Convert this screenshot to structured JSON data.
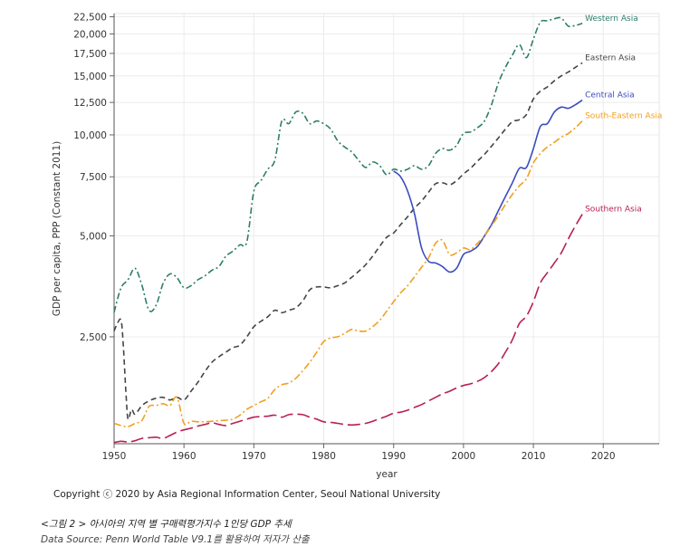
{
  "chart_data": {
    "type": "line",
    "xlabel": "year",
    "ylabel": "GDP per capita, PPP (Constant 2011)",
    "xlim": [
      1950,
      2028
    ],
    "ylim": [
      1200,
      23000
    ],
    "yscale": "log",
    "x_ticks": [
      1950,
      1960,
      1970,
      1980,
      1990,
      2000,
      2010,
      2020
    ],
    "y_ticks": [
      2500,
      5000,
      7500,
      10000,
      12500,
      15000,
      17500,
      20000,
      22500
    ],
    "y_tick_labels": [
      "2,500",
      "5,000",
      "7,500",
      "10,000",
      "12,500",
      "15,000",
      "17,500",
      "20,000",
      "22,500"
    ],
    "grid": true,
    "series": [
      {
        "name": "Western Asia",
        "color": "#2e7d6b",
        "dash": "7,3,2,3",
        "points": [
          [
            1950,
            2960
          ],
          [
            1951,
            3500
          ],
          [
            1952,
            3700
          ],
          [
            1953,
            4000
          ],
          [
            1954,
            3550
          ],
          [
            1955,
            3000
          ],
          [
            1956,
            3100
          ],
          [
            1957,
            3600
          ],
          [
            1958,
            3850
          ],
          [
            1959,
            3750
          ],
          [
            1960,
            3500
          ],
          [
            1961,
            3550
          ],
          [
            1962,
            3700
          ],
          [
            1963,
            3800
          ],
          [
            1964,
            3950
          ],
          [
            1965,
            4050
          ],
          [
            1966,
            4350
          ],
          [
            1967,
            4500
          ],
          [
            1968,
            4700
          ],
          [
            1969,
            4800
          ],
          [
            1970,
            6800
          ],
          [
            1971,
            7300
          ],
          [
            1972,
            7900
          ],
          [
            1973,
            8400
          ],
          [
            1974,
            11000
          ],
          [
            1975,
            10800
          ],
          [
            1976,
            11700
          ],
          [
            1977,
            11600
          ],
          [
            1978,
            10800
          ],
          [
            1979,
            11000
          ],
          [
            1980,
            10800
          ],
          [
            1981,
            10400
          ],
          [
            1982,
            9600
          ],
          [
            1983,
            9200
          ],
          [
            1984,
            8900
          ],
          [
            1985,
            8400
          ],
          [
            1986,
            8000
          ],
          [
            1987,
            8300
          ],
          [
            1988,
            8100
          ],
          [
            1989,
            7600
          ],
          [
            1990,
            7900
          ],
          [
            1991,
            7800
          ],
          [
            1992,
            7900
          ],
          [
            1993,
            8100
          ],
          [
            1994,
            7900
          ],
          [
            1995,
            8100
          ],
          [
            1996,
            8800
          ],
          [
            1997,
            9100
          ],
          [
            1998,
            9000
          ],
          [
            1999,
            9300
          ],
          [
            2000,
            10100
          ],
          [
            2001,
            10200
          ],
          [
            2002,
            10500
          ],
          [
            2003,
            11000
          ],
          [
            2004,
            12300
          ],
          [
            2005,
            14300
          ],
          [
            2006,
            15900
          ],
          [
            2007,
            17300
          ],
          [
            2008,
            18600
          ],
          [
            2009,
            17000
          ],
          [
            2010,
            19300
          ],
          [
            2011,
            21700
          ],
          [
            2012,
            21900
          ],
          [
            2013,
            22200
          ],
          [
            2014,
            22300
          ],
          [
            2015,
            21100
          ],
          [
            2016,
            21200
          ],
          [
            2017,
            21500
          ]
        ]
      },
      {
        "name": "Eastern Asia",
        "color": "#444444",
        "dash": "6,4",
        "points": [
          [
            1950,
            2600
          ],
          [
            1950.5,
            2750
          ],
          [
            1951,
            2800
          ],
          [
            1951.3,
            2400
          ],
          [
            1951.7,
            1700
          ],
          [
            1952,
            1420
          ],
          [
            1952.5,
            1520
          ],
          [
            1953,
            1470
          ],
          [
            1954,
            1560
          ],
          [
            1955,
            1610
          ],
          [
            1956,
            1640
          ],
          [
            1957,
            1650
          ],
          [
            1958,
            1620
          ],
          [
            1959,
            1650
          ],
          [
            1960,
            1620
          ],
          [
            1961,
            1720
          ],
          [
            1962,
            1830
          ],
          [
            1963,
            1970
          ],
          [
            1964,
            2100
          ],
          [
            1965,
            2180
          ],
          [
            1966,
            2250
          ],
          [
            1967,
            2320
          ],
          [
            1968,
            2360
          ],
          [
            1969,
            2500
          ],
          [
            1970,
            2680
          ],
          [
            1971,
            2780
          ],
          [
            1972,
            2870
          ],
          [
            1973,
            3000
          ],
          [
            1974,
            2950
          ],
          [
            1975,
            3000
          ],
          [
            1976,
            3050
          ],
          [
            1977,
            3200
          ],
          [
            1978,
            3450
          ],
          [
            1979,
            3520
          ],
          [
            1980,
            3520
          ],
          [
            1981,
            3500
          ],
          [
            1982,
            3550
          ],
          [
            1983,
            3620
          ],
          [
            1984,
            3760
          ],
          [
            1985,
            3920
          ],
          [
            1986,
            4100
          ],
          [
            1987,
            4350
          ],
          [
            1988,
            4650
          ],
          [
            1989,
            4950
          ],
          [
            1990,
            5100
          ],
          [
            1991,
            5400
          ],
          [
            1992,
            5700
          ],
          [
            1993,
            6050
          ],
          [
            1994,
            6350
          ],
          [
            1995,
            6750
          ],
          [
            1996,
            7150
          ],
          [
            1997,
            7200
          ],
          [
            1998,
            7100
          ],
          [
            1999,
            7300
          ],
          [
            2000,
            7650
          ],
          [
            2001,
            7950
          ],
          [
            2002,
            8350
          ],
          [
            2003,
            8750
          ],
          [
            2004,
            9250
          ],
          [
            2005,
            9800
          ],
          [
            2006,
            10400
          ],
          [
            2007,
            10950
          ],
          [
            2008,
            11100
          ],
          [
            2009,
            11500
          ],
          [
            2010,
            12800
          ],
          [
            2011,
            13500
          ],
          [
            2012,
            13900
          ],
          [
            2013,
            14500
          ],
          [
            2014,
            15000
          ],
          [
            2015,
            15400
          ],
          [
            2016,
            15900
          ],
          [
            2017,
            16400
          ]
        ]
      },
      {
        "name": "Central Asia",
        "color": "#3a4bbf",
        "dash": "",
        "points": [
          [
            1990,
            7800
          ],
          [
            1991,
            7500
          ],
          [
            1992,
            6800
          ],
          [
            1993,
            5800
          ],
          [
            1994,
            4600
          ],
          [
            1995,
            4200
          ],
          [
            1996,
            4150
          ],
          [
            1997,
            4050
          ],
          [
            1998,
            3900
          ],
          [
            1999,
            4000
          ],
          [
            2000,
            4400
          ],
          [
            2001,
            4500
          ],
          [
            2002,
            4650
          ],
          [
            2003,
            5000
          ],
          [
            2004,
            5400
          ],
          [
            2005,
            5950
          ],
          [
            2006,
            6550
          ],
          [
            2007,
            7200
          ],
          [
            2008,
            7950
          ],
          [
            2009,
            8000
          ],
          [
            2010,
            9100
          ],
          [
            2011,
            10600
          ],
          [
            2012,
            10800
          ],
          [
            2013,
            11700
          ],
          [
            2014,
            12100
          ],
          [
            2015,
            12000
          ],
          [
            2016,
            12300
          ],
          [
            2017,
            12700
          ]
        ]
      },
      {
        "name": "South-Eastern Asia",
        "color": "#f0a020",
        "dash": "8,3,2,3",
        "points": [
          [
            1950,
            1380
          ],
          [
            1951,
            1360
          ],
          [
            1952,
            1350
          ],
          [
            1953,
            1380
          ],
          [
            1954,
            1410
          ],
          [
            1955,
            1550
          ],
          [
            1956,
            1560
          ],
          [
            1957,
            1580
          ],
          [
            1958,
            1560
          ],
          [
            1959,
            1650
          ],
          [
            1960,
            1380
          ],
          [
            1961,
            1400
          ],
          [
            1962,
            1395
          ],
          [
            1963,
            1395
          ],
          [
            1964,
            1400
          ],
          [
            1965,
            1405
          ],
          [
            1966,
            1410
          ],
          [
            1967,
            1420
          ],
          [
            1968,
            1460
          ],
          [
            1969,
            1520
          ],
          [
            1970,
            1560
          ],
          [
            1971,
            1600
          ],
          [
            1972,
            1640
          ],
          [
            1973,
            1740
          ],
          [
            1974,
            1800
          ],
          [
            1975,
            1820
          ],
          [
            1976,
            1880
          ],
          [
            1977,
            1980
          ],
          [
            1978,
            2100
          ],
          [
            1979,
            2250
          ],
          [
            1980,
            2420
          ],
          [
            1981,
            2480
          ],
          [
            1982,
            2500
          ],
          [
            1983,
            2560
          ],
          [
            1984,
            2630
          ],
          [
            1985,
            2600
          ],
          [
            1986,
            2600
          ],
          [
            1987,
            2680
          ],
          [
            1988,
            2800
          ],
          [
            1989,
            2980
          ],
          [
            1990,
            3180
          ],
          [
            1991,
            3380
          ],
          [
            1992,
            3550
          ],
          [
            1993,
            3780
          ],
          [
            1994,
            4030
          ],
          [
            1995,
            4300
          ],
          [
            1996,
            4750
          ],
          [
            1997,
            4850
          ],
          [
            1998,
            4400
          ],
          [
            1999,
            4450
          ],
          [
            2000,
            4600
          ],
          [
            2001,
            4550
          ],
          [
            2002,
            4750
          ],
          [
            2003,
            5000
          ],
          [
            2004,
            5350
          ],
          [
            2005,
            5750
          ],
          [
            2006,
            6200
          ],
          [
            2007,
            6650
          ],
          [
            2008,
            7050
          ],
          [
            2009,
            7400
          ],
          [
            2010,
            8250
          ],
          [
            2011,
            8800
          ],
          [
            2012,
            9200
          ],
          [
            2013,
            9500
          ],
          [
            2014,
            9850
          ],
          [
            2015,
            10100
          ],
          [
            2016,
            10500
          ],
          [
            2017,
            11000
          ]
        ]
      },
      {
        "name": "Southern Asia",
        "color": "#b8204e",
        "dash": "14,5",
        "points": [
          [
            1950,
            1210
          ],
          [
            1951,
            1220
          ],
          [
            1952,
            1215
          ],
          [
            1953,
            1225
          ],
          [
            1954,
            1245
          ],
          [
            1955,
            1250
          ],
          [
            1956,
            1255
          ],
          [
            1957,
            1245
          ],
          [
            1958,
            1270
          ],
          [
            1959,
            1300
          ],
          [
            1960,
            1320
          ],
          [
            1961,
            1335
          ],
          [
            1962,
            1355
          ],
          [
            1963,
            1370
          ],
          [
            1964,
            1385
          ],
          [
            1965,
            1370
          ],
          [
            1966,
            1360
          ],
          [
            1967,
            1380
          ],
          [
            1968,
            1400
          ],
          [
            1969,
            1420
          ],
          [
            1970,
            1440
          ],
          [
            1971,
            1445
          ],
          [
            1972,
            1450
          ],
          [
            1973,
            1460
          ],
          [
            1974,
            1440
          ],
          [
            1975,
            1465
          ],
          [
            1976,
            1470
          ],
          [
            1977,
            1465
          ],
          [
            1978,
            1440
          ],
          [
            1979,
            1420
          ],
          [
            1980,
            1395
          ],
          [
            1981,
            1390
          ],
          [
            1982,
            1380
          ],
          [
            1983,
            1370
          ],
          [
            1984,
            1365
          ],
          [
            1985,
            1370
          ],
          [
            1986,
            1380
          ],
          [
            1987,
            1400
          ],
          [
            1988,
            1425
          ],
          [
            1989,
            1450
          ],
          [
            1990,
            1480
          ],
          [
            1991,
            1490
          ],
          [
            1992,
            1510
          ],
          [
            1993,
            1540
          ],
          [
            1994,
            1570
          ],
          [
            1995,
            1610
          ],
          [
            1996,
            1650
          ],
          [
            1997,
            1690
          ],
          [
            1998,
            1720
          ],
          [
            1999,
            1760
          ],
          [
            2000,
            1790
          ],
          [
            2001,
            1810
          ],
          [
            2002,
            1840
          ],
          [
            2003,
            1890
          ],
          [
            2004,
            1970
          ],
          [
            2005,
            2080
          ],
          [
            2006,
            2250
          ],
          [
            2007,
            2450
          ],
          [
            2008,
            2740
          ],
          [
            2009,
            2880
          ],
          [
            2010,
            3180
          ],
          [
            2011,
            3620
          ],
          [
            2012,
            3880
          ],
          [
            2013,
            4150
          ],
          [
            2014,
            4450
          ],
          [
            2015,
            4900
          ],
          [
            2016,
            5350
          ],
          [
            2017,
            5800
          ]
        ]
      }
    ]
  },
  "copyright": "Copyright ⓒ 2020 by Asia Regional Information Center, Seoul National University",
  "caption": "<그림 2 > 아시아의 지역 별 구매력평가지수 1인당 GDP 추세",
  "source": "Data Source: Penn World Table V9.1를 활용하여 저자가 산출"
}
